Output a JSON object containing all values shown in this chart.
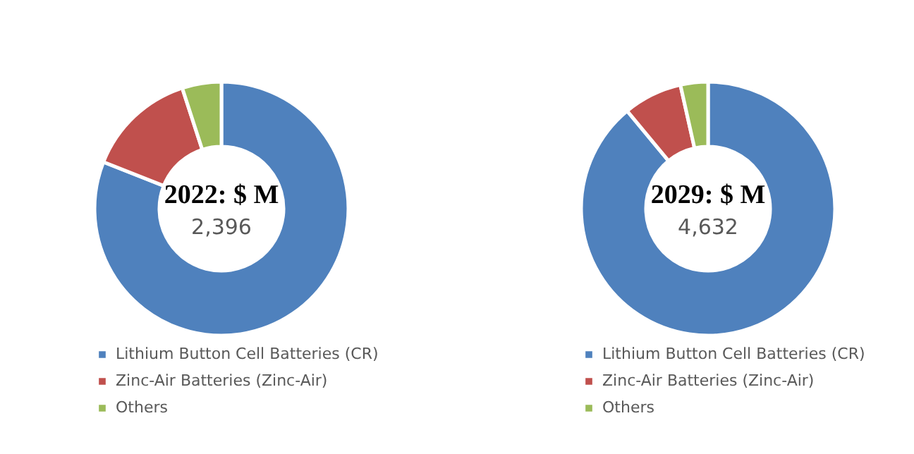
{
  "chart_data": [
    {
      "type": "donut",
      "title": "2022: $ M",
      "subtitle": "2,396",
      "categories": [
        "Lithium Button Cell Batteries (CR)",
        "Zinc-Air Batteries (Zinc-Air)",
        "Others"
      ],
      "values": [
        81,
        14,
        5
      ],
      "colors": [
        "#4f81bd",
        "#c0504d",
        "#9bbb59"
      ],
      "legend": "bottom"
    },
    {
      "type": "donut",
      "title": "2029: $ M",
      "subtitle": "4,632",
      "categories": [
        "Lithium Button Cell Batteries (CR)",
        "Zinc-Air Batteries (Zinc-Air)",
        "Others"
      ],
      "values": [
        89,
        7.5,
        3.5
      ],
      "colors": [
        "#4f81bd",
        "#c0504d",
        "#9bbb59"
      ],
      "legend": "bottom"
    }
  ]
}
